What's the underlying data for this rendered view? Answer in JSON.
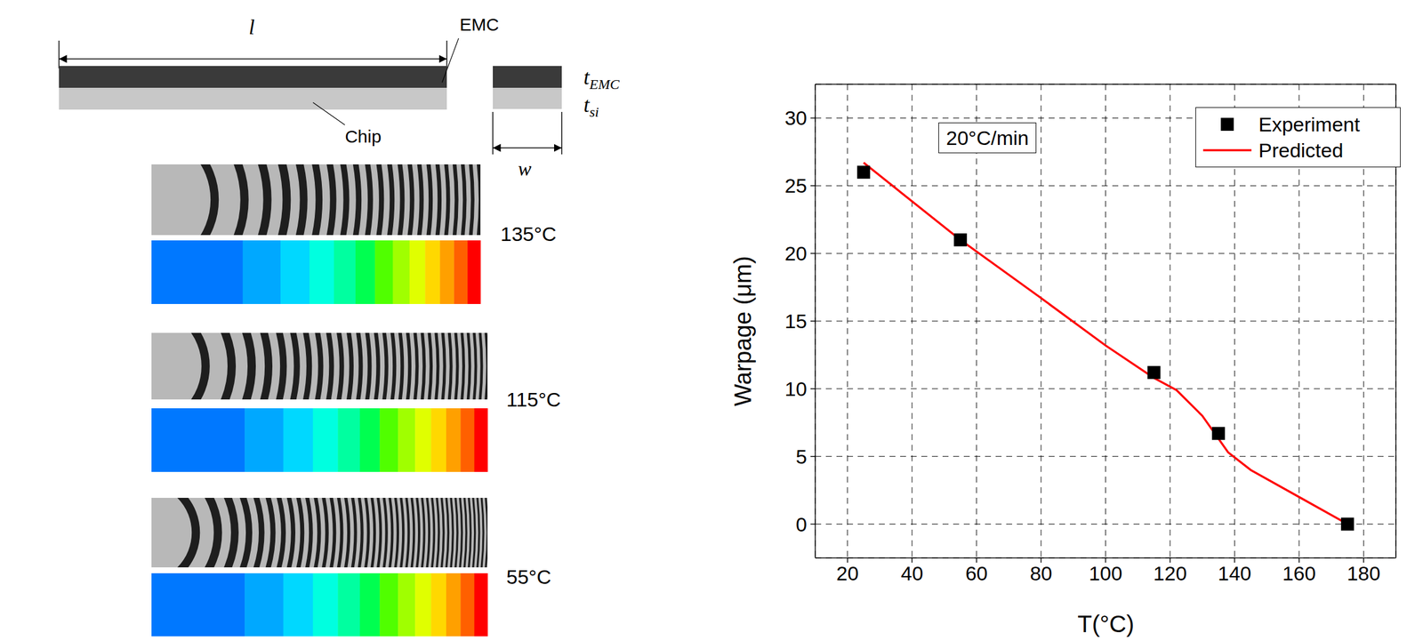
{
  "diagram": {
    "length_label": "l",
    "width_label": "w",
    "emc_label": "EMC",
    "chip_label": "Chip",
    "thickness_labels": [
      {
        "base": "t",
        "sub": "EMC"
      },
      {
        "base": "t",
        "sub": "si"
      }
    ],
    "panels": [
      {
        "temperature": "135°C"
      },
      {
        "temperature": "115°C"
      },
      {
        "temperature": "55°C"
      }
    ]
  },
  "chart_data": {
    "type": "line",
    "x_label": "T(°C)",
    "y_label": "Warpage (μm)",
    "annotation": "20°C/min",
    "xlim": [
      10,
      190
    ],
    "xticks": [
      20,
      40,
      60,
      80,
      100,
      120,
      140,
      160,
      180
    ],
    "ylim": [
      -2.5,
      32.5
    ],
    "yticks": [
      0,
      5,
      10,
      15,
      20,
      25,
      30
    ],
    "grid": true,
    "legend": "top-right",
    "series": [
      {
        "name": "Experiment",
        "type": "scatter",
        "color": "#000000",
        "marker": "square",
        "x": [
          25,
          55,
          115,
          135,
          175
        ],
        "values": [
          26,
          21,
          11.2,
          6.7,
          0
        ]
      },
      {
        "name": "Predicted",
        "type": "line",
        "color": "#ff0000",
        "line_style": "solid",
        "x": [
          25,
          55,
          80,
          100,
          115,
          122,
          130,
          138,
          145,
          160,
          175
        ],
        "values": [
          26.7,
          21,
          16.7,
          13.2,
          10.8,
          9.9,
          8,
          5.3,
          4,
          2,
          0
        ]
      }
    ]
  }
}
